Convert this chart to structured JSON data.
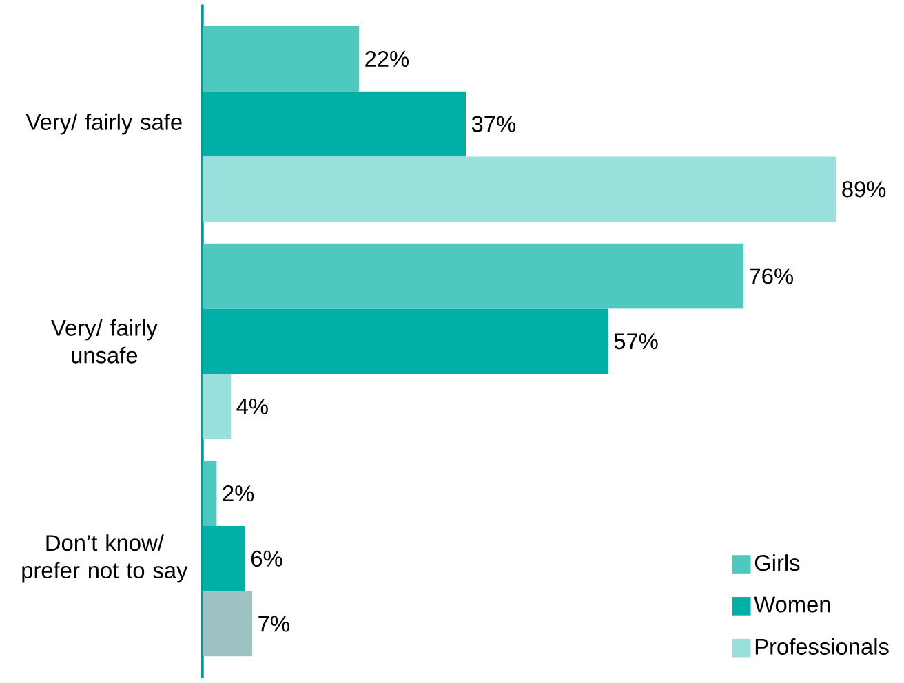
{
  "chart_data": {
    "type": "bar",
    "orientation": "horizontal",
    "categories": [
      "Very/ fairly safe",
      "Very/ fairly unsafe",
      "Don’t know/ prefer not to say"
    ],
    "series": [
      {
        "name": "Girls",
        "color": "#4dc9c0",
        "values": [
          22,
          76,
          2
        ],
        "value_labels": [
          "22%",
          "76%",
          "2%"
        ]
      },
      {
        "name": "Women",
        "color": "#00b0a6",
        "values": [
          37,
          57,
          6
        ],
        "value_labels": [
          "37%",
          "57%",
          "6%"
        ]
      },
      {
        "name": "Professionals",
        "color": "#99e0dc",
        "colors": [
          "#99e0dc",
          "#99e0dc",
          "#9dc3c3"
        ],
        "values": [
          89,
          4,
          7
        ],
        "value_labels": [
          "89%",
          "4%",
          "7%"
        ]
      }
    ],
    "legend": "bottom right"
  }
}
